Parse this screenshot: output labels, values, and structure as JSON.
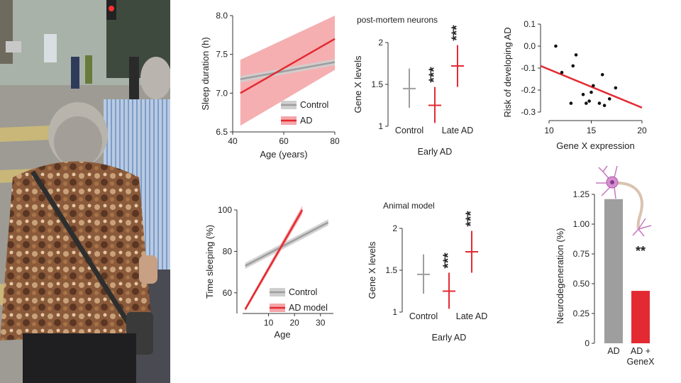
{
  "photo": {
    "description_icon": "photo-of-elderly-woman-at-street-crossing"
  },
  "colors": {
    "control": "#9e9e9e",
    "ad": "#e32a32",
    "band_ad": "#f4a6a8",
    "band_control": "#cfcfcf",
    "axis": "#333333"
  },
  "chart_data": [
    {
      "id": "sleep_duration",
      "type": "line",
      "title": "",
      "xlabel": "Age (years)",
      "ylabel": "Sleep duration (h)",
      "xlim": [
        40,
        80
      ],
      "ylim": [
        6.5,
        8.0
      ],
      "xticks": [
        "40",
        "60",
        "80"
      ],
      "xtick_values": [
        40,
        60,
        80
      ],
      "yticks": [
        "6.5",
        "7.0",
        "7.5",
        "8.0"
      ],
      "ytick_values": [
        6.5,
        7.0,
        7.5,
        8.0
      ],
      "series": [
        {
          "name": "Control",
          "x": [
            43,
            80
          ],
          "y": [
            7.18,
            7.4
          ],
          "band_low": [
            7.14,
            7.36
          ],
          "band_high": [
            7.22,
            7.44
          ]
        },
        {
          "name": "AD",
          "x": [
            43,
            80
          ],
          "y": [
            7.0,
            7.7
          ],
          "band_low": [
            6.58,
            7.3
          ],
          "band_high": [
            7.43,
            8.0
          ]
        }
      ],
      "legend": {
        "position": "bottom-right",
        "entries": [
          "Control",
          "AD"
        ]
      }
    },
    {
      "id": "postmortem_genex",
      "type": "errorbar",
      "title": "post-mortem neurons",
      "ylabel": "Gene X levels",
      "xlabel": "Early AD",
      "categories": [
        "Control",
        "Early AD",
        "Late AD"
      ],
      "tick_labels": [
        "Control",
        "Late AD"
      ],
      "ylim": [
        1,
        2
      ],
      "yticks": [
        "1",
        "1.5",
        "2"
      ],
      "ytick_values": [
        1,
        1.5,
        2
      ],
      "values": [
        1.45,
        1.25,
        1.72
      ],
      "err_low": [
        1.22,
        1.04,
        1.47
      ],
      "err_high": [
        1.69,
        1.47,
        1.97
      ],
      "significance": [
        "",
        "***",
        "***"
      ]
    },
    {
      "id": "risk_scatter",
      "type": "scatter",
      "xlabel": "Gene X expression",
      "ylabel": "Risk of developing AD",
      "xlim": [
        10,
        20
      ],
      "ylim": [
        -0.3,
        0.1
      ],
      "xticks": [
        "10",
        "15",
        "20"
      ],
      "xtick_values": [
        10,
        15,
        20
      ],
      "yticks": [
        "0.1",
        "0.0",
        "-0.1",
        "-0.2",
        "-0.3"
      ],
      "ytick_values": [
        0.1,
        0.0,
        -0.1,
        -0.2,
        -0.3
      ],
      "x": [
        11.5,
        12.1,
        13.0,
        13.2,
        13.5,
        14.2,
        14.5,
        14.8,
        15.0,
        15.2,
        15.8,
        16.1,
        16.3,
        16.8,
        17.4
      ],
      "y": [
        0.0,
        -0.12,
        -0.26,
        -0.09,
        -0.04,
        -0.22,
        -0.26,
        -0.25,
        -0.21,
        -0.18,
        -0.26,
        -0.13,
        -0.27,
        -0.24,
        -0.19
      ],
      "fit": {
        "x": [
          10,
          20
        ],
        "y": [
          -0.09,
          -0.28
        ]
      }
    },
    {
      "id": "time_sleeping",
      "type": "line",
      "xlabel": "Age",
      "ylabel": "Time sleeping (%)",
      "xlim": [
        0,
        35
      ],
      "ylim": [
        50,
        100
      ],
      "xticks": [
        "10",
        "20",
        "30"
      ],
      "xtick_values": [
        10,
        20,
        30
      ],
      "yticks": [
        "60",
        "80",
        "100"
      ],
      "ytick_values": [
        60,
        80,
        100
      ],
      "series": [
        {
          "name": "Control",
          "x": [
            1,
            33
          ],
          "y": [
            73,
            94
          ],
          "band_low": [
            71.5,
            92.5
          ],
          "band_high": [
            74.5,
            95.5
          ]
        },
        {
          "name": "AD model",
          "x": [
            1,
            23
          ],
          "y": [
            52,
            100
          ],
          "band_low": [
            51,
            98
          ],
          "band_high": [
            53,
            102
          ]
        }
      ],
      "legend": {
        "position": "bottom-right",
        "entries": [
          "Control",
          "AD model"
        ]
      }
    },
    {
      "id": "animal_genex",
      "type": "errorbar",
      "title": "Animal model",
      "ylabel": "Gene X levels",
      "xlabel": "Early AD",
      "categories": [
        "Control",
        "Early AD",
        "Late AD"
      ],
      "tick_labels": [
        "Control",
        "Late AD"
      ],
      "ylim": [
        1,
        2
      ],
      "yticks": [
        "1",
        "1.5",
        "2"
      ],
      "ytick_values": [
        1,
        1.5,
        2
      ],
      "values": [
        1.45,
        1.25,
        1.72
      ],
      "err_low": [
        1.22,
        1.04,
        1.47
      ],
      "err_high": [
        1.69,
        1.47,
        1.97
      ],
      "significance": [
        "",
        "***",
        "***"
      ]
    },
    {
      "id": "neurodegeneration",
      "type": "bar",
      "ylabel": "Neurodegeneration (%)",
      "categories": [
        "AD",
        "AD + GeneX"
      ],
      "category_lines": [
        [
          "AD"
        ],
        [
          "AD +",
          "GeneX"
        ]
      ],
      "values": [
        1.21,
        0.44
      ],
      "ylim": [
        0,
        1.25
      ],
      "yticks": [
        "0",
        "0.25",
        "0.50",
        "0.75",
        "1.00",
        "1.25"
      ],
      "ytick_values": [
        0,
        0.25,
        0.5,
        0.75,
        1.0,
        1.25
      ],
      "bar_colors": [
        "#9e9e9e",
        "#e32a32"
      ],
      "significance": [
        "",
        "**"
      ],
      "icon": "neuron-icon"
    }
  ]
}
